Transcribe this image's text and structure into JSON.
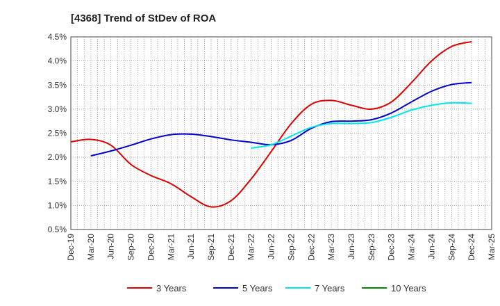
{
  "chart_data": {
    "type": "line",
    "title": "[4368]  Trend of StDev of ROA",
    "xlabel": "",
    "ylabel": "",
    "categories": [
      "Dec-19",
      "Mar-20",
      "Jun-20",
      "Sep-20",
      "Dec-20",
      "Mar-21",
      "Jun-21",
      "Sep-21",
      "Dec-21",
      "Mar-22",
      "Jun-22",
      "Sep-22",
      "Dec-22",
      "Mar-23",
      "Jun-23",
      "Sep-23",
      "Dec-23",
      "Mar-24",
      "Jun-24",
      "Sep-24",
      "Dec-24",
      "Mar-25"
    ],
    "y_ticks": [
      "0.5%",
      "1.0%",
      "1.5%",
      "2.0%",
      "2.5%",
      "3.0%",
      "3.5%",
      "4.0%",
      "4.5%"
    ],
    "ylim": [
      0.5,
      4.5
    ],
    "grid": true,
    "legend_position": "bottom",
    "series": [
      {
        "name": "3 Years",
        "color": "#dd0000",
        "values": [
          2.32,
          2.37,
          2.25,
          1.85,
          1.62,
          1.45,
          1.18,
          0.97,
          1.1,
          1.55,
          2.12,
          2.7,
          3.1,
          3.18,
          3.08,
          3.0,
          3.15,
          3.55,
          4.0,
          4.3,
          4.4,
          null
        ]
      },
      {
        "name": "5 Years",
        "color": "#0000cc",
        "values": [
          null,
          2.03,
          2.13,
          2.25,
          2.38,
          2.47,
          2.48,
          2.43,
          2.36,
          2.31,
          2.26,
          2.35,
          2.6,
          2.74,
          2.75,
          2.78,
          2.92,
          3.15,
          3.37,
          3.51,
          3.55,
          null
        ]
      },
      {
        "name": "7 Years",
        "color": "#00e5ee",
        "values": [
          null,
          null,
          null,
          null,
          null,
          null,
          null,
          null,
          null,
          2.19,
          2.26,
          2.44,
          2.62,
          2.7,
          2.7,
          2.72,
          2.83,
          2.98,
          3.08,
          3.13,
          3.12,
          null
        ]
      },
      {
        "name": "10 Years",
        "color": "#008800",
        "values": [
          null,
          null,
          null,
          null,
          null,
          null,
          null,
          null,
          null,
          null,
          null,
          null,
          null,
          null,
          null,
          null,
          null,
          null,
          null,
          null,
          null,
          null
        ]
      }
    ]
  }
}
